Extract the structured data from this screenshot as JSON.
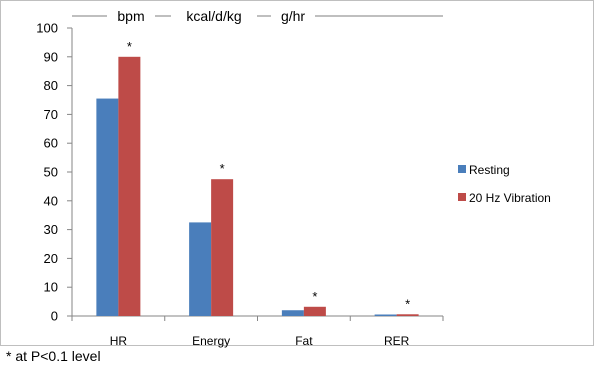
{
  "chart_data": {
    "type": "bar",
    "categories": [
      "HR",
      "Energy",
      "Fat",
      "RER"
    ],
    "series": [
      {
        "name": "Resting",
        "values": [
          75.5,
          32.5,
          2,
          0.5
        ],
        "color": "#4a7ebb"
      },
      {
        "name": "20 Hz Vibration",
        "values": [
          90,
          47.5,
          3.2,
          0.6
        ],
        "color": "#be4b48"
      }
    ],
    "ylim": [
      0,
      100
    ],
    "y_ticks": [
      0,
      10,
      20,
      30,
      40,
      50,
      60,
      70,
      80,
      90,
      100
    ],
    "units": [
      "bpm",
      "kcal/d/kg",
      "g/hr"
    ],
    "significance_markers": [
      "*",
      "*",
      "*",
      "*"
    ],
    "footnote": "* at P<0.1 level",
    "grid": false,
    "legend_position": "right"
  }
}
